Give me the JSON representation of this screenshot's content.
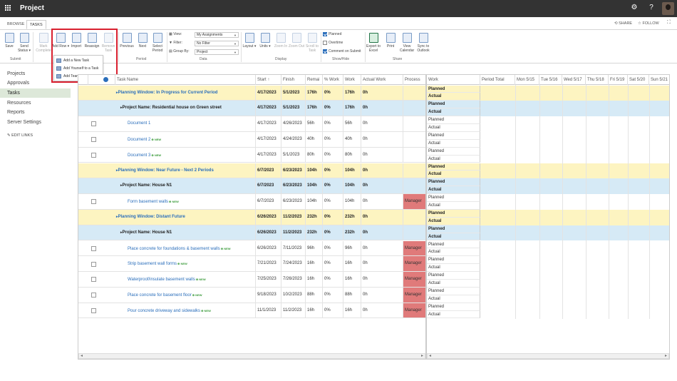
{
  "app": {
    "title": "Project"
  },
  "tabs": [
    {
      "label": "BROWSE"
    },
    {
      "label": "TASKS"
    }
  ],
  "share_bar": {
    "share": "SHARE",
    "follow": "FOLLOW"
  },
  "ribbon": {
    "submit_group": {
      "label": "Submit",
      "save": "Save",
      "send_status": "Send Status ▾"
    },
    "tasks_group": {
      "mark_complete": "Mark Complete",
      "add_row": "Add Row ▾",
      "import": "Import",
      "reassign": "Reassign",
      "remove_task": "Remove Task"
    },
    "period_group": {
      "label": "Period",
      "previous": "Previous",
      "next": "Next",
      "select_period": "Select Period"
    },
    "data_group": {
      "label": "Data",
      "view_label": "View:",
      "view_value": "My Assignments",
      "filter_label": "Filter:",
      "filter_value": "No Filter",
      "group_label": "Group By:",
      "group_value": "Project"
    },
    "display_group": {
      "label": "Display",
      "layout": "Layout ▾",
      "units": "Units ▾",
      "zoom_in": "Zoom In",
      "zoom_out": "Zoom Out",
      "scroll": "Scroll to Task"
    },
    "showhide_group": {
      "label": "Show/Hide",
      "planned": "Planned",
      "overtime": "Overtime",
      "comment": "Comment on Submit"
    },
    "share_group": {
      "label": "Share",
      "export": "Export to Excel",
      "print": "Print",
      "view_calendar": "View Calendar",
      "sync_outlook": "Sync to Outlook"
    }
  },
  "add_row_menu": {
    "items": [
      "Add a New Task",
      "Add Yourself to a Task",
      "Add Team Tasks"
    ]
  },
  "nav": {
    "items": [
      "Projects",
      "Approvals",
      "Tasks",
      "Resources",
      "Reports",
      "Server Settings"
    ],
    "edit_links": "EDIT LINKS"
  },
  "grid": {
    "headers": {
      "task": "Task Name",
      "start": "Start ↑",
      "finish": "Finish",
      "remain": "Remai",
      "pct": "% Work",
      "work": "Work",
      "actual": "Actual Work",
      "process": "Process"
    },
    "rows": [
      {
        "type": "pw",
        "name": "Planning Window: In Progress for Current Period",
        "start": "4/17/2023",
        "finish": "5/1/2023",
        "remain": "176h",
        "pct": "0%",
        "work": "176h",
        "actual": "0h",
        "process": ""
      },
      {
        "type": "pn",
        "name": "Project Name: Residential house on Green street",
        "start": "4/17/2023",
        "finish": "5/1/2023",
        "remain": "176h",
        "pct": "0%",
        "work": "176h",
        "actual": "0h",
        "process": ""
      },
      {
        "type": "task",
        "name": "Document 1",
        "start": "4/17/2023",
        "finish": "4/26/2023",
        "remain": "56h",
        "pct": "0%",
        "work": "56h",
        "actual": "0h",
        "process": "",
        "new": ""
      },
      {
        "type": "task",
        "name": "Document 2",
        "start": "4/17/2023",
        "finish": "4/24/2023",
        "remain": "40h",
        "pct": "0%",
        "work": "40h",
        "actual": "0h",
        "process": "",
        "new": "NEW"
      },
      {
        "type": "task",
        "name": "Document 3",
        "start": "4/17/2023",
        "finish": "5/1/2023",
        "remain": "80h",
        "pct": "0%",
        "work": "80h",
        "actual": "0h",
        "process": "",
        "new": "NEW"
      },
      {
        "type": "pw",
        "name": "Planning Window: Near Future - Next 2 Periods",
        "start": "6/7/2023",
        "finish": "6/23/2023",
        "remain": "104h",
        "pct": "0%",
        "work": "104h",
        "actual": "0h",
        "process": ""
      },
      {
        "type": "pn",
        "name": "Project Name: House N1",
        "start": "6/7/2023",
        "finish": "6/23/2023",
        "remain": "104h",
        "pct": "0%",
        "work": "104h",
        "actual": "0h",
        "process": ""
      },
      {
        "type": "task",
        "name": "Form basement walls",
        "start": "6/7/2023",
        "finish": "6/23/2023",
        "remain": "104h",
        "pct": "0%",
        "work": "104h",
        "actual": "0h",
        "process": "Manager",
        "new": "NEW"
      },
      {
        "type": "pw",
        "name": "Planning Window: Distant Future",
        "start": "6/26/2023",
        "finish": "11/2/2023",
        "remain": "232h",
        "pct": "0%",
        "work": "232h",
        "actual": "0h",
        "process": ""
      },
      {
        "type": "pn",
        "name": "Project Name: House N1",
        "start": "6/26/2023",
        "finish": "11/2/2023",
        "remain": "232h",
        "pct": "0%",
        "work": "232h",
        "actual": "0h",
        "process": ""
      },
      {
        "type": "task",
        "name": "Place concrete for foundations & basement walls",
        "start": "6/26/2023",
        "finish": "7/11/2023",
        "remain": "96h",
        "pct": "0%",
        "work": "96h",
        "actual": "0h",
        "process": "Manager",
        "new": "NEW"
      },
      {
        "type": "task",
        "name": "Strip basement wall forms",
        "start": "7/21/2023",
        "finish": "7/24/2023",
        "remain": "16h",
        "pct": "0%",
        "work": "16h",
        "actual": "0h",
        "process": "Manager",
        "new": "NEW"
      },
      {
        "type": "task",
        "name": "Waterproof/insulate basement walls",
        "start": "7/25/2023",
        "finish": "7/26/2023",
        "remain": "16h",
        "pct": "0%",
        "work": "16h",
        "actual": "0h",
        "process": "Manager",
        "new": "NEW"
      },
      {
        "type": "task",
        "name": "Place concrete for basement floor",
        "start": "9/18/2023",
        "finish": "10/2/2023",
        "remain": "88h",
        "pct": "0%",
        "work": "88h",
        "actual": "0h",
        "process": "Manager",
        "new": "NEW"
      },
      {
        "type": "task",
        "name": "Pour concrete driveway and sidewalks",
        "start": "11/1/2023",
        "finish": "11/2/2023",
        "remain": "16h",
        "pct": "0%",
        "work": "16h",
        "actual": "0h",
        "process": "Manager",
        "new": "NEW"
      }
    ]
  },
  "timegrid": {
    "headers": [
      "Work",
      "Period Total",
      "Mon 5/15",
      "Tue 5/16",
      "Wed 5/17",
      "Thu 5/18",
      "Fri 5/19",
      "Sat 5/20",
      "Sun 5/21"
    ],
    "planned": "Planned",
    "actual": "Actual"
  },
  "colors": {
    "planning_window": "#fdf4c1",
    "project_row": "#d6eaf6",
    "process_flag": "#e07a7a",
    "highlight": "#d9202f",
    "topbar": "#333333"
  }
}
